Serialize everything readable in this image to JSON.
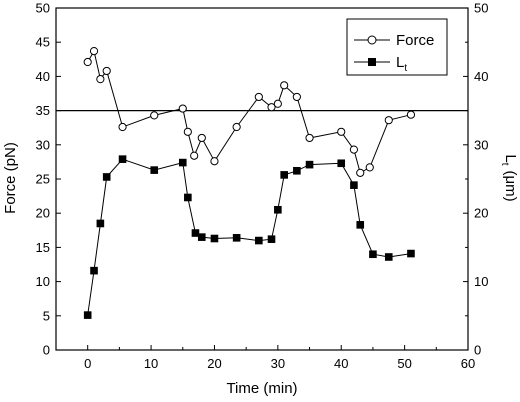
{
  "chart_data": {
    "type": "line",
    "title": "",
    "xlabel": "Time (min)",
    "ylabel": "Force (pN)",
    "ylabel_right": "L",
    "ylabel_right_sub": "t",
    "ylabel_right_unit": "(μm)",
    "xlim": [
      -5,
      60
    ],
    "ylim": [
      0,
      50
    ],
    "ylim_right": [
      0,
      50
    ],
    "x_ticks": [
      "0",
      "10",
      "20",
      "30",
      "40",
      "50",
      "60"
    ],
    "y_ticks": [
      "0",
      "5",
      "10",
      "15",
      "20",
      "25",
      "30",
      "35",
      "40",
      "45",
      "50"
    ],
    "y_right_ticks": [
      "0",
      "10",
      "20",
      "30",
      "40",
      "50"
    ],
    "grid": false,
    "legend_position": "top-right",
    "reference_line": {
      "y": 35
    },
    "series": [
      {
        "name": "Force",
        "marker": "open-circle",
        "axis": "left",
        "x": [
          0,
          1,
          2,
          3,
          5.5,
          10.5,
          15,
          15.8,
          16.8,
          18,
          20,
          23.5,
          27,
          29,
          30,
          31,
          33,
          35,
          40,
          42,
          43,
          44.5,
          47.5,
          51
        ],
        "y": [
          42.1,
          43.7,
          39.6,
          40.8,
          32.6,
          34.3,
          35.3,
          31.9,
          28.4,
          31.0,
          27.6,
          32.6,
          37.0,
          35.5,
          36.0,
          38.7,
          37.0,
          31.0,
          31.9,
          29.3,
          25.9,
          26.7,
          33.6,
          34.4
        ]
      },
      {
        "name": "Lt",
        "marker": "filled-square",
        "axis": "right",
        "x": [
          0,
          1,
          2,
          3,
          5.5,
          10.5,
          15,
          15.8,
          17,
          18,
          20,
          23.5,
          27,
          29,
          30,
          31,
          33,
          35,
          40,
          42,
          43,
          45,
          47.5,
          51
        ],
        "y": [
          5.1,
          11.6,
          18.5,
          25.3,
          27.9,
          26.3,
          27.4,
          22.3,
          17.1,
          16.5,
          16.3,
          16.4,
          16.0,
          16.2,
          20.5,
          25.6,
          26.2,
          27.1,
          27.3,
          24.1,
          18.3,
          14.0,
          13.6,
          14.1
        ]
      }
    ]
  }
}
